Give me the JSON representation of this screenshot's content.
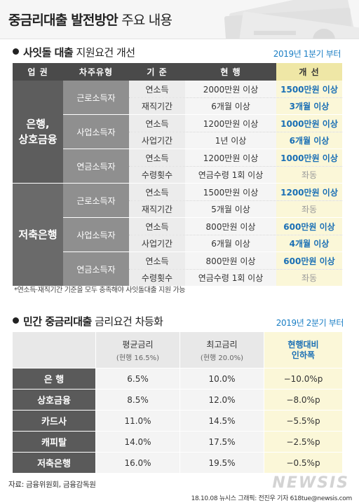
{
  "header": {
    "title_bold": "중금리대출 발전방안",
    "title_rest": "주요 내용"
  },
  "section1": {
    "title_bold": "사잇돌 대출",
    "title_rest": "지원요건 개선",
    "period": "2019년 1분기 부터",
    "columns": [
      "업 권",
      "차주유형",
      "기 준",
      "현 행",
      "개 선"
    ],
    "groups": [
      {
        "bank": "은행,\n상호금융",
        "subs": [
          {
            "type": "근로소득자",
            "rows": [
              {
                "criterion": "연소득",
                "current": "2000만원 이상",
                "improved": "1500만원 이상",
                "same": false
              },
              {
                "criterion": "재직기간",
                "current": "6개월 이상",
                "improved": "3개월 이상",
                "same": false
              }
            ]
          },
          {
            "type": "사업소득자",
            "rows": [
              {
                "criterion": "연소득",
                "current": "1200만원 이상",
                "improved": "1000만원 이상",
                "same": false
              },
              {
                "criterion": "사업기간",
                "current": "1년 이상",
                "improved": "6개월 이상",
                "same": false
              }
            ]
          },
          {
            "type": "연금소득자",
            "rows": [
              {
                "criterion": "연소득",
                "current": "1200만원 이상",
                "improved": "1000만원 이상",
                "same": false
              },
              {
                "criterion": "수령횟수",
                "current": "연금수령 1회 이상",
                "improved": "좌동",
                "same": true
              }
            ]
          }
        ]
      },
      {
        "bank": "저축은행",
        "subs": [
          {
            "type": "근로소득자",
            "rows": [
              {
                "criterion": "연소득",
                "current": "1500만원 이상",
                "improved": "1200만원 이상",
                "same": false
              },
              {
                "criterion": "재직기간",
                "current": "5개월 이상",
                "improved": "좌동",
                "same": true
              }
            ]
          },
          {
            "type": "사업소득자",
            "rows": [
              {
                "criterion": "연소득",
                "current": "800만원 이상",
                "improved": "600만원 이상",
                "same": false
              },
              {
                "criterion": "사업기간",
                "current": "6개월 이상",
                "improved": "4개월 이상",
                "same": false
              }
            ]
          },
          {
            "type": "연금소득자",
            "rows": [
              {
                "criterion": "연소득",
                "current": "800만원 이상",
                "improved": "600만원 이상",
                "same": false
              },
              {
                "criterion": "수령횟수",
                "current": "연금수령 1회 이상",
                "improved": "좌동",
                "same": true
              }
            ]
          }
        ]
      }
    ],
    "note": "*연소득·재직기간 기준을 모두 충족해야 사잇돌대출 지원 가능"
  },
  "section2": {
    "title_bold": "민간 중금리대출",
    "title_rest": "금리요건 차등화",
    "period": "2019년 2분기 부터",
    "columns": [
      {
        "label": "평균금리",
        "sub": "(현행 16.5%)"
      },
      {
        "label": "최고금리",
        "sub": "(현행 20.0%)"
      },
      {
        "label": "현행대비\n인하폭",
        "sub": ""
      }
    ],
    "rows": [
      {
        "name": "은 행",
        "avg": "6.5%",
        "max": "10.0%",
        "cut": "−10.0%p"
      },
      {
        "name": "상호금융",
        "avg": "8.5%",
        "max": "12.0%",
        "cut": "−8.0%p"
      },
      {
        "name": "카드사",
        "avg": "11.0%",
        "max": "14.5%",
        "cut": "−5.5%p"
      },
      {
        "name": "캐피탈",
        "avg": "14.0%",
        "max": "17.5%",
        "cut": "−2.5%p"
      },
      {
        "name": "저축은행",
        "avg": "16.0%",
        "max": "19.5%",
        "cut": "−0.5%p"
      }
    ]
  },
  "footer": {
    "source": "자료: 금융위원회, 금융감독원",
    "logo": "NEWSIS",
    "credit": "18.10.08 뉴시스 그래픽: 전진우 기자 618tue@newsis.com"
  },
  "colors": {
    "accent_blue": "#1a6fb5",
    "highlight_yellow": "#fbf7d8",
    "dark_header": "#4a4a4a"
  }
}
